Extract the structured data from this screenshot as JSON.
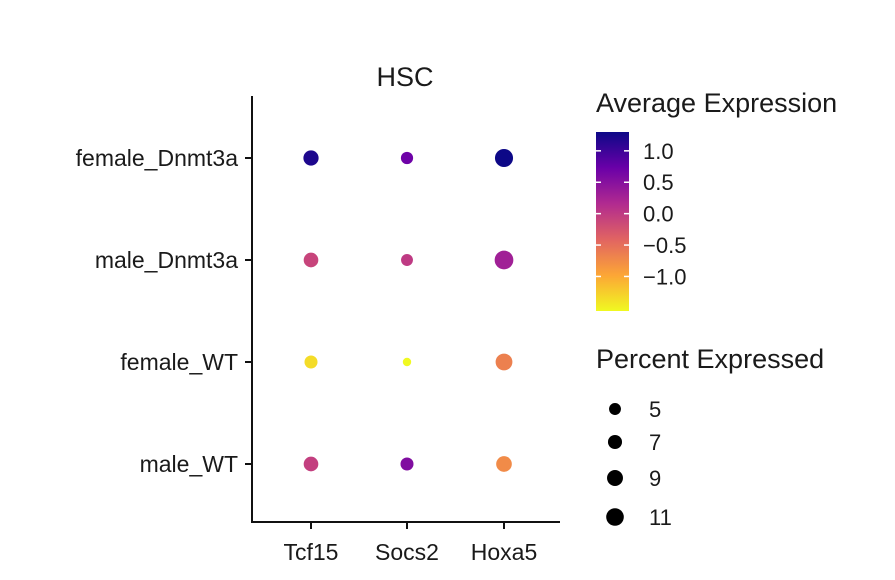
{
  "chart_data": {
    "type": "dot",
    "title": "HSC",
    "xlabel": "",
    "ylabel": "",
    "genes": [
      "Tcf15",
      "Socs2",
      "Hoxa5"
    ],
    "groups": [
      "female_Dnmt3a",
      "male_Dnmt3a",
      "female_WT",
      "male_WT"
    ],
    "avg_expression": [
      [
        1.2,
        0.7,
        1.3
      ],
      [
        -0.1,
        0.0,
        0.3
      ],
      [
        -1.35,
        -1.6,
        -0.65
      ],
      [
        -0.05,
        0.55,
        -0.75
      ]
    ],
    "pct_expressed": [
      [
        8.2,
        5.3,
        11.6
      ],
      [
        7.6,
        5.0,
        12.4
      ],
      [
        6.0,
        2.5,
        10.0
      ],
      [
        7.6,
        6.0,
        8.7
      ]
    ],
    "color_scale": {
      "title": "Average Expression",
      "ticks": [
        "1.0",
        "0.5",
        "0.0",
        "−0.5",
        "−1.0"
      ],
      "tick_values": [
        1.0,
        0.5,
        0.0,
        -0.5,
        -1.0
      ],
      "range": [
        -1.55,
        1.3
      ],
      "colors_high_to_low": [
        "#0d0887",
        "#6a00a8",
        "#b12a90",
        "#e16462",
        "#fca636",
        "#f0f921"
      ]
    },
    "size_scale": {
      "title": "Percent Expressed",
      "labels": [
        "5",
        "7",
        "9",
        "11"
      ],
      "values": [
        5,
        7,
        9,
        11
      ]
    },
    "legend_placement": "right",
    "grid": false
  }
}
